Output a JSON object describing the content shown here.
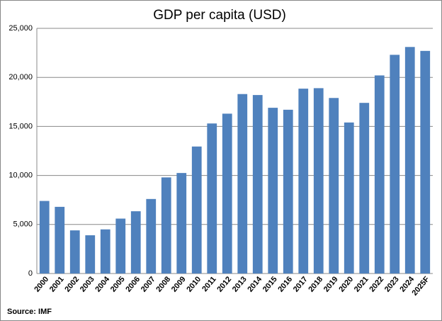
{
  "chart_data": {
    "type": "bar",
    "title": "GDP per capita (USD)",
    "source": "Source: IMF",
    "categories": [
      "2000",
      "2001",
      "2002",
      "2003",
      "2004",
      "2005",
      "2006",
      "2007",
      "2008",
      "2009",
      "2010",
      "2011",
      "2012",
      "2013",
      "2014",
      "2015",
      "2016",
      "2017",
      "2018",
      "2019",
      "2020",
      "2021",
      "2022",
      "2023",
      "2024",
      "2025F"
    ],
    "values": [
      7400,
      6800,
      4400,
      3900,
      4500,
      5600,
      6350,
      7600,
      9800,
      10250,
      12950,
      15300,
      16300,
      18300,
      18200,
      16900,
      16700,
      18850,
      18900,
      17900,
      15400,
      17400,
      20200,
      22300,
      23100,
      22700
    ],
    "color": "#4f81bd",
    "ylim": [
      0,
      25000
    ],
    "yticks": [
      0,
      {
        "value": 5000,
        "label": "5,000"
      },
      {
        "value": 10000,
        "label": "10,000"
      },
      {
        "value": 15000,
        "label": "15,000"
      },
      {
        "value": 20000,
        "label": "20,000"
      },
      {
        "value": 25000,
        "label": "25,000"
      }
    ],
    "grid": true
  }
}
